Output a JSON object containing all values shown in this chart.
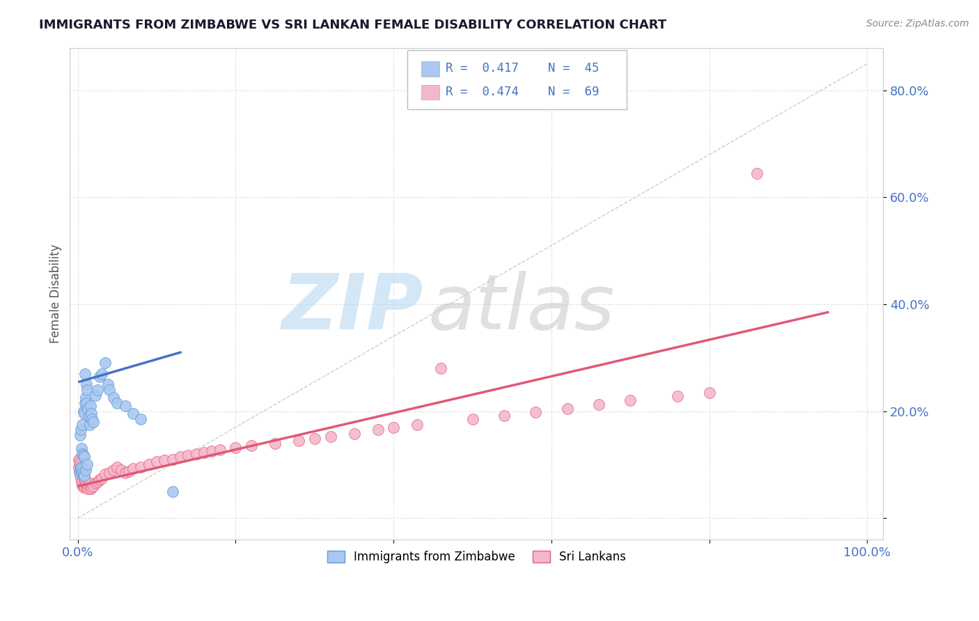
{
  "title": "IMMIGRANTS FROM ZIMBABWE VS SRI LANKAN FEMALE DISABILITY CORRELATION CHART",
  "source": "Source: ZipAtlas.com",
  "ylabel": "Female Disability",
  "xlim": [
    -0.01,
    1.02
  ],
  "ylim": [
    -0.04,
    0.88
  ],
  "xticks": [
    0.0,
    1.0
  ],
  "xticklabels": [
    "0.0%",
    "100.0%"
  ],
  "ytick_positions": [
    0.0,
    0.2,
    0.4,
    0.6,
    0.8
  ],
  "yticklabels": [
    "",
    "20.0%",
    "40.0%",
    "60.0%",
    "80.0%"
  ],
  "zimbabwe_color": "#aac8f0",
  "srilanka_color": "#f5b8cb",
  "zimbabwe_edge_color": "#5b9bd5",
  "srilanka_edge_color": "#e06080",
  "zimbabwe_line_color": "#4472c4",
  "srilanka_line_color": "#e05878",
  "ref_line_color": "#c0c0c0",
  "label_zimbabwe": "Immigrants from Zimbabwe",
  "label_srilanka": "Sri Lankans",
  "watermark_zip": "ZIP",
  "watermark_atlas": "atlas",
  "title_color": "#1a1a2e",
  "axis_color": "#4472c4",
  "background_color": "#ffffff",
  "zimbabwe_x": [
    0.002,
    0.003,
    0.003,
    0.004,
    0.004,
    0.005,
    0.005,
    0.005,
    0.006,
    0.006,
    0.006,
    0.007,
    0.007,
    0.007,
    0.008,
    0.008,
    0.008,
    0.009,
    0.009,
    0.01,
    0.01,
    0.011,
    0.011,
    0.012,
    0.012,
    0.013,
    0.014,
    0.015,
    0.016,
    0.017,
    0.018,
    0.02,
    0.022,
    0.025,
    0.028,
    0.03,
    0.035,
    0.038,
    0.04,
    0.045,
    0.05,
    0.06,
    0.07,
    0.08,
    0.12
  ],
  "zimbabwe_y": [
    0.085,
    0.09,
    0.155,
    0.095,
    0.165,
    0.088,
    0.092,
    0.13,
    0.085,
    0.12,
    0.175,
    0.082,
    0.118,
    0.2,
    0.08,
    0.115,
    0.195,
    0.215,
    0.27,
    0.09,
    0.225,
    0.215,
    0.25,
    0.1,
    0.24,
    0.205,
    0.19,
    0.175,
    0.21,
    0.195,
    0.185,
    0.18,
    0.23,
    0.24,
    0.265,
    0.27,
    0.29,
    0.25,
    0.24,
    0.225,
    0.215,
    0.21,
    0.195,
    0.185,
    0.05
  ],
  "srilanka_x": [
    0.001,
    0.001,
    0.002,
    0.002,
    0.003,
    0.003,
    0.004,
    0.004,
    0.005,
    0.005,
    0.006,
    0.006,
    0.007,
    0.007,
    0.008,
    0.008,
    0.009,
    0.01,
    0.011,
    0.012,
    0.013,
    0.014,
    0.015,
    0.016,
    0.018,
    0.02,
    0.022,
    0.025,
    0.028,
    0.03,
    0.035,
    0.04,
    0.045,
    0.05,
    0.055,
    0.06,
    0.065,
    0.07,
    0.08,
    0.09,
    0.1,
    0.11,
    0.12,
    0.13,
    0.14,
    0.15,
    0.16,
    0.17,
    0.18,
    0.2,
    0.22,
    0.25,
    0.28,
    0.3,
    0.32,
    0.35,
    0.38,
    0.4,
    0.43,
    0.46,
    0.5,
    0.54,
    0.58,
    0.62,
    0.66,
    0.7,
    0.76,
    0.8,
    0.86
  ],
  "srilanka_y": [
    0.11,
    0.095,
    0.105,
    0.088,
    0.1,
    0.082,
    0.095,
    0.075,
    0.09,
    0.068,
    0.085,
    0.062,
    0.08,
    0.058,
    0.075,
    0.06,
    0.07,
    0.065,
    0.062,
    0.058,
    0.055,
    0.06,
    0.065,
    0.055,
    0.058,
    0.06,
    0.065,
    0.068,
    0.072,
    0.075,
    0.082,
    0.085,
    0.09,
    0.095,
    0.09,
    0.085,
    0.088,
    0.092,
    0.095,
    0.1,
    0.105,
    0.108,
    0.11,
    0.115,
    0.118,
    0.12,
    0.122,
    0.125,
    0.128,
    0.132,
    0.135,
    0.14,
    0.145,
    0.148,
    0.152,
    0.158,
    0.165,
    0.17,
    0.175,
    0.28,
    0.185,
    0.192,
    0.198,
    0.205,
    0.212,
    0.22,
    0.228,
    0.235,
    0.645
  ],
  "zim_trend_x0": 0.002,
  "zim_trend_x1": 0.13,
  "zim_trend_y0": 0.255,
  "zim_trend_y1": 0.31,
  "sri_trend_x0": 0.001,
  "sri_trend_x1": 0.95,
  "sri_trend_y0": 0.06,
  "sri_trend_y1": 0.385
}
